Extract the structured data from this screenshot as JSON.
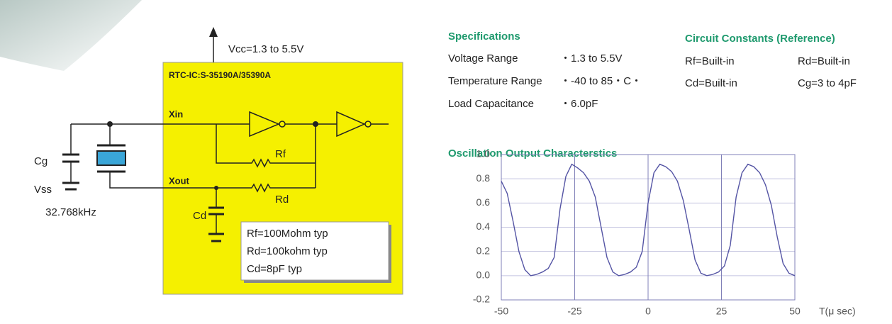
{
  "circuit": {
    "vcc": "Vcc=1.3 to 5.5V",
    "ic": "RTC-IC:S-35190A/35390A",
    "xin": "Xin",
    "xout": "Xout",
    "rf": "Rf",
    "rd": "Rd",
    "cd": "Cd",
    "cg": "Cg",
    "vss": "Vss",
    "crystal": "32.768kHz",
    "notes": [
      "Rf=100Mohm typ",
      "Rd=100kohm typ",
      "Cd=8pF typ"
    ]
  },
  "specifications": {
    "title": "Specifications",
    "rows": [
      [
        "Voltage Range",
        "・1.3 to 5.5V"
      ],
      [
        "Temperature Range",
        "・-40 to 85・C・"
      ],
      [
        "Load Capacitance",
        "・6.0pF"
      ]
    ]
  },
  "constants": {
    "title": "Circuit Constants (Reference)",
    "rows": [
      [
        "Rf=Built-in",
        "Rd=Built-in"
      ],
      [
        "Cd=Built-in",
        "Cg=3 to 4pF"
      ]
    ]
  },
  "chart_data": {
    "type": "line",
    "title": "Oscillation Output Characterstics",
    "x_label": "T(μ sec)",
    "x": [
      -50,
      -48,
      -46,
      -44,
      -42,
      -40,
      -38,
      -36,
      -34,
      -32,
      -30,
      -28,
      -26,
      -24,
      -22,
      -20,
      -18,
      -16,
      -14,
      -12,
      -10,
      -8,
      -6,
      -4,
      -2,
      0,
      2,
      4,
      6,
      8,
      10,
      12,
      14,
      16,
      18,
      20,
      22,
      24,
      26,
      28,
      30,
      32,
      34,
      36,
      38,
      40,
      42,
      44,
      46,
      48,
      50
    ],
    "series": [
      {
        "color": "#5454a4",
        "values": [
          0.78,
          0.68,
          0.45,
          0.2,
          0.05,
          0.0,
          0.01,
          0.03,
          0.06,
          0.15,
          0.55,
          0.82,
          0.92,
          0.89,
          0.85,
          0.78,
          0.65,
          0.4,
          0.15,
          0.03,
          0.0,
          0.01,
          0.03,
          0.07,
          0.2,
          0.6,
          0.85,
          0.92,
          0.9,
          0.86,
          0.78,
          0.62,
          0.38,
          0.13,
          0.02,
          0.0,
          0.01,
          0.03,
          0.08,
          0.25,
          0.65,
          0.85,
          0.92,
          0.9,
          0.85,
          0.75,
          0.58,
          0.32,
          0.1,
          0.02,
          0.0
        ]
      }
    ],
    "xlim": [
      -50,
      50
    ],
    "ylim": [
      -0.2,
      1.0
    ],
    "xticks": [
      -50,
      -25,
      0,
      25,
      50
    ],
    "yticks": [
      -0.2,
      {
        "value": 0,
        "label": "0.0"
      },
      0.2,
      0.4,
      0.6,
      0.8,
      {
        "value": 1,
        "label": "1.0"
      }
    ],
    "grid": true
  }
}
